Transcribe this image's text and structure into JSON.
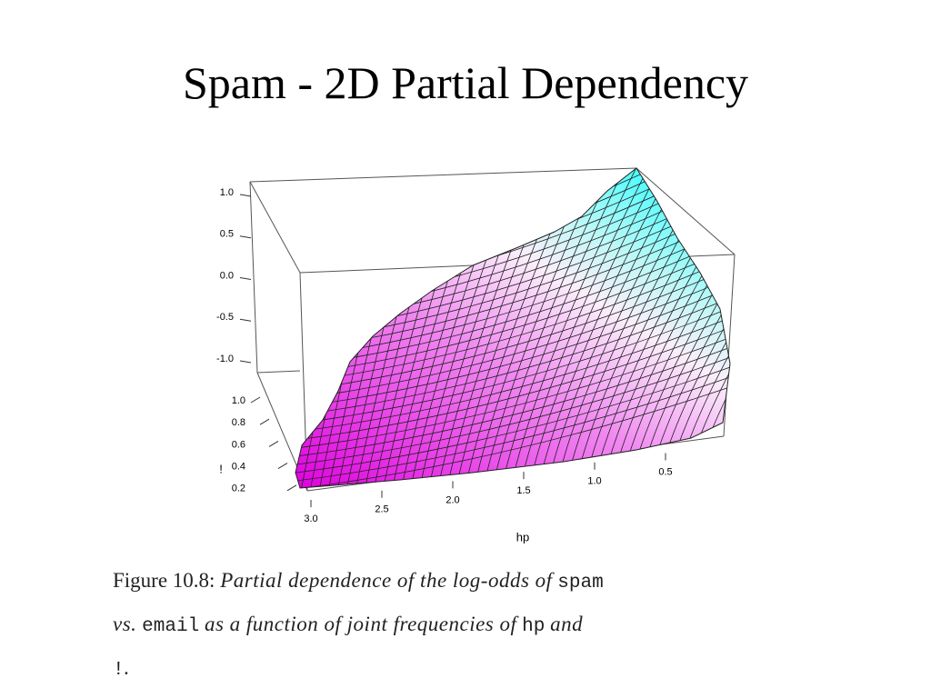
{
  "slide": {
    "title": "Spam - 2D Partial Dependency"
  },
  "figure": {
    "z_ticks": [
      "1.0",
      "0.5",
      "0.0",
      "-0.5",
      "-1.0"
    ],
    "depth_ticks": [
      "1.0",
      "0.8",
      "0.6",
      "0.4",
      "0.2"
    ],
    "depth_label": "!",
    "x_ticks": [
      "3.0",
      "2.5",
      "2.0",
      "1.5",
      "1.0",
      "0.5"
    ],
    "x_label": "hp"
  },
  "caption": {
    "parts": [
      "Figure 10.8:",
      "Partial dependence of the log-odds of",
      "spam",
      "vs.",
      "email",
      "as a function of joint frequencies of",
      "hp",
      "and",
      "!",
      "."
    ]
  }
}
